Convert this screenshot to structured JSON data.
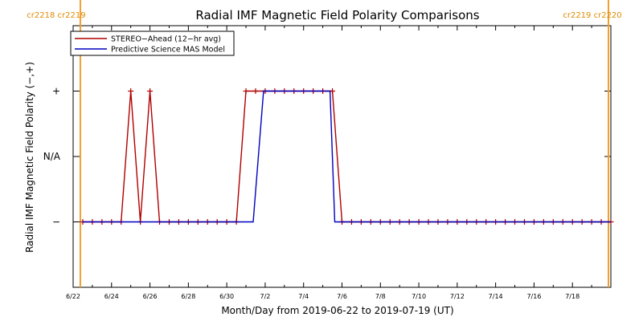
{
  "chart_data": {
    "type": "line",
    "title": "Radial IMF Magnetic Field Polarity Comparisons",
    "xlabel": "Month/Day from 2019-06-22 to 2019-07-19 (UT)",
    "ylabel": "Radial IMF Magnetic Field Polarity (−,+)",
    "x_start": "2019-06-22",
    "x_end": "2019-07-20",
    "y_categories": [
      "−",
      "N/A",
      "+"
    ],
    "ylim": [
      -2,
      2
    ],
    "x_tick_labels": [
      {
        "label": "6/22",
        "date": "2019-06-22"
      },
      {
        "label": "6/24",
        "date": "2019-06-24"
      },
      {
        "label": "6/26",
        "date": "2019-06-26"
      },
      {
        "label": "6/28",
        "date": "2019-06-28"
      },
      {
        "label": "6/30",
        "date": "2019-06-30"
      },
      {
        "label": "7/2",
        "date": "2019-07-02"
      },
      {
        "label": "7/4",
        "date": "2019-07-04"
      },
      {
        "label": "7/6",
        "date": "2019-07-06"
      },
      {
        "label": "7/8",
        "date": "2019-07-08"
      },
      {
        "label": "7/10",
        "date": "2019-07-10"
      },
      {
        "label": "7/12",
        "date": "2019-07-12"
      },
      {
        "label": "7/14",
        "date": "2019-07-14"
      },
      {
        "label": "7/16",
        "date": "2019-07-16"
      },
      {
        "label": "7/18",
        "date": "2019-07-18"
      }
    ],
    "carrington_markers": [
      {
        "date": "2019-06-22T09:00",
        "left_label": "cr2218",
        "right_label": "cr2219",
        "side": "left"
      },
      {
        "date": "2019-07-19T21:00",
        "left_label": "cr2219",
        "right_label": "cr2220",
        "side": "right"
      }
    ],
    "legend": "top-left",
    "grid": false,
    "series": [
      {
        "name": "STEREO−Ahead (12−hr avg)",
        "color": "#b00000",
        "marker": "plus",
        "points": [
          [
            "2019-06-22T12:00",
            -1
          ],
          [
            "2019-06-23T00:00",
            -1
          ],
          [
            "2019-06-23T12:00",
            -1
          ],
          [
            "2019-06-24T00:00",
            -1
          ],
          [
            "2019-06-24T12:00",
            -1
          ],
          [
            "2019-06-25T00:00",
            1
          ],
          [
            "2019-06-25T12:00",
            -1
          ],
          [
            "2019-06-26T00:00",
            1
          ],
          [
            "2019-06-26T12:00",
            -1
          ],
          [
            "2019-06-27T00:00",
            -1
          ],
          [
            "2019-06-27T12:00",
            -1
          ],
          [
            "2019-06-28T00:00",
            -1
          ],
          [
            "2019-06-28T12:00",
            -1
          ],
          [
            "2019-06-29T00:00",
            -1
          ],
          [
            "2019-06-29T12:00",
            -1
          ],
          [
            "2019-06-30T00:00",
            -1
          ],
          [
            "2019-06-30T12:00",
            -1
          ],
          [
            "2019-07-01T00:00",
            1
          ],
          [
            "2019-07-01T12:00",
            1
          ],
          [
            "2019-07-02T00:00",
            1
          ],
          [
            "2019-07-02T12:00",
            1
          ],
          [
            "2019-07-03T00:00",
            1
          ],
          [
            "2019-07-03T12:00",
            1
          ],
          [
            "2019-07-04T00:00",
            1
          ],
          [
            "2019-07-04T12:00",
            1
          ],
          [
            "2019-07-05T00:00",
            1
          ],
          [
            "2019-07-05T12:00",
            1
          ],
          [
            "2019-07-06T00:00",
            -1
          ],
          [
            "2019-07-06T12:00",
            -1
          ],
          [
            "2019-07-07T00:00",
            -1
          ],
          [
            "2019-07-07T12:00",
            -1
          ],
          [
            "2019-07-08T00:00",
            -1
          ],
          [
            "2019-07-08T12:00",
            -1
          ],
          [
            "2019-07-09T00:00",
            -1
          ],
          [
            "2019-07-09T12:00",
            -1
          ],
          [
            "2019-07-10T00:00",
            -1
          ],
          [
            "2019-07-10T12:00",
            -1
          ],
          [
            "2019-07-11T00:00",
            -1
          ],
          [
            "2019-07-11T12:00",
            -1
          ],
          [
            "2019-07-12T00:00",
            -1
          ],
          [
            "2019-07-12T12:00",
            -1
          ],
          [
            "2019-07-13T00:00",
            -1
          ],
          [
            "2019-07-13T12:00",
            -1
          ],
          [
            "2019-07-14T00:00",
            -1
          ],
          [
            "2019-07-14T12:00",
            -1
          ],
          [
            "2019-07-15T00:00",
            -1
          ],
          [
            "2019-07-15T12:00",
            -1
          ],
          [
            "2019-07-16T00:00",
            -1
          ],
          [
            "2019-07-16T12:00",
            -1
          ],
          [
            "2019-07-17T00:00",
            -1
          ],
          [
            "2019-07-17T12:00",
            -1
          ],
          [
            "2019-07-18T00:00",
            -1
          ],
          [
            "2019-07-18T12:00",
            -1
          ],
          [
            "2019-07-19T00:00",
            -1
          ],
          [
            "2019-07-19T12:00",
            -1
          ],
          [
            "2019-07-20T00:00",
            -1
          ]
        ]
      },
      {
        "name": "Predictive Science MAS Model",
        "color": "#0000c0",
        "marker": "none",
        "points": [
          [
            "2019-06-22T12:00",
            -1
          ],
          [
            "2019-07-01T09:00",
            -1
          ],
          [
            "2019-07-01T22:00",
            1
          ],
          [
            "2019-07-05T09:00",
            1
          ],
          [
            "2019-07-05T15:00",
            -1
          ],
          [
            "2019-07-20T00:00",
            -1
          ]
        ]
      }
    ]
  }
}
